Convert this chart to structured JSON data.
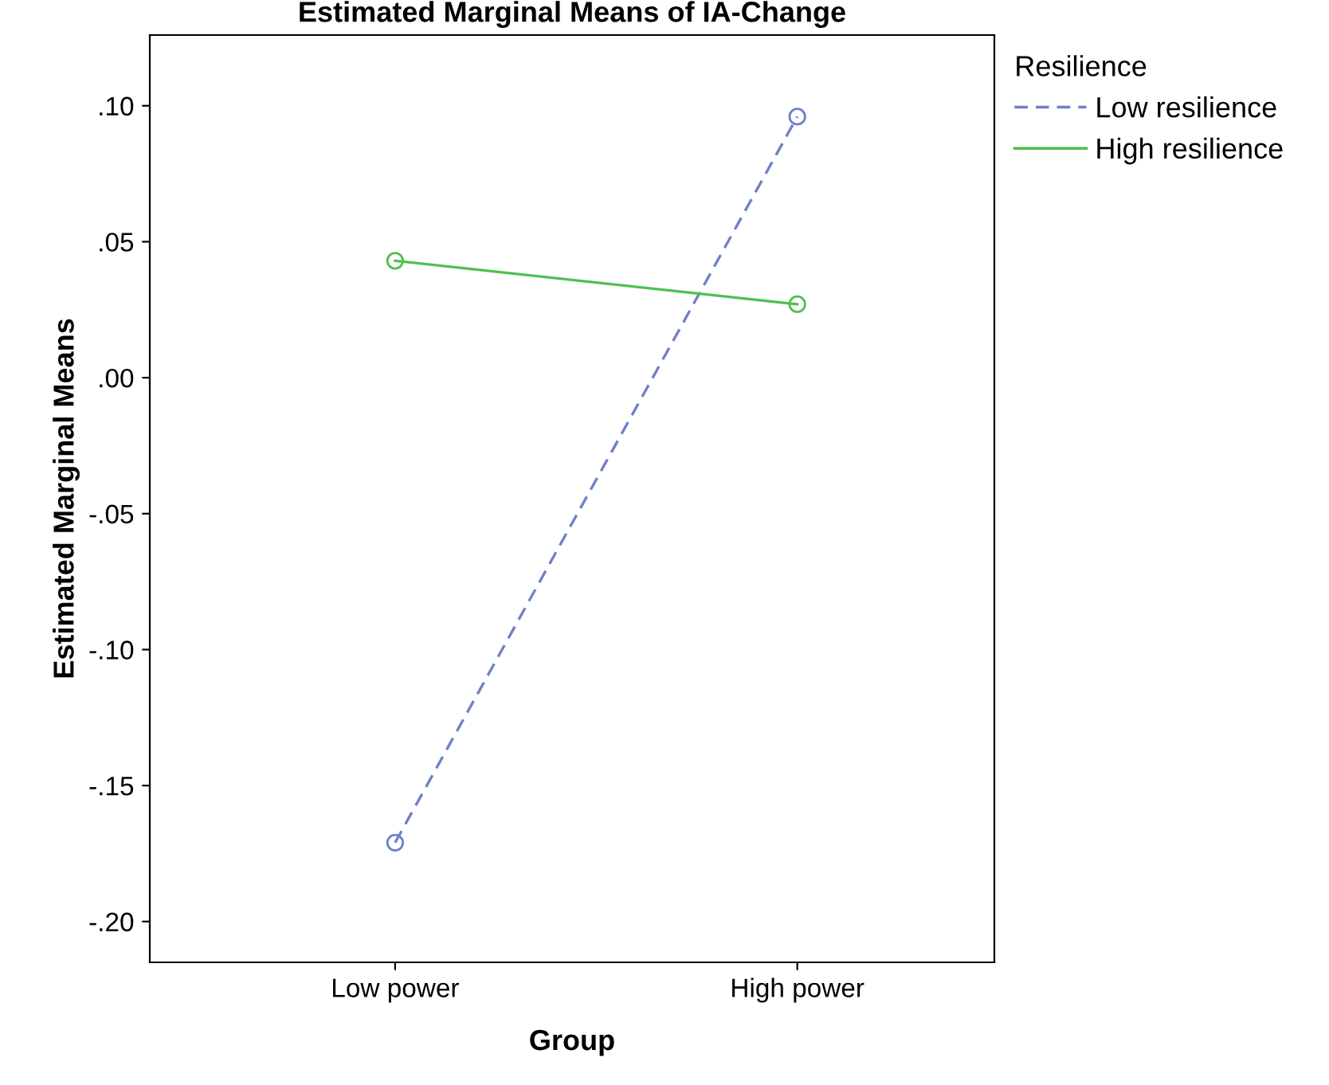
{
  "chart_data": {
    "type": "line",
    "title": "Estimated Marginal Means of IA-Change",
    "xlabel": "Group",
    "ylabel": "Estimated Marginal Means",
    "legend_title": "Resilience",
    "categories": [
      "Low power",
      "High power"
    ],
    "series": [
      {
        "name": "Low resilience",
        "color": "#6f80c8",
        "line_style": "dashed",
        "values": [
          -0.171,
          0.096
        ]
      },
      {
        "name": "High resilience",
        "color": "#4fc04f",
        "line_style": "solid",
        "values": [
          0.043,
          0.027
        ]
      }
    ],
    "marker": "circle",
    "legend": "top right",
    "grid": false,
    "ylim": [
      -0.215,
      0.126
    ],
    "yticks": [
      {
        "value": -0.2,
        "label": "-.20"
      },
      {
        "value": -0.15,
        "label": "-.15"
      },
      {
        "value": -0.1,
        "label": "-.10"
      },
      {
        "value": -0.05,
        "label": "-.05"
      },
      {
        "value": 0,
        "label": ".00"
      },
      {
        "value": 0.05,
        "label": ".05"
      },
      {
        "value": 0.1,
        "label": ".10"
      }
    ]
  }
}
